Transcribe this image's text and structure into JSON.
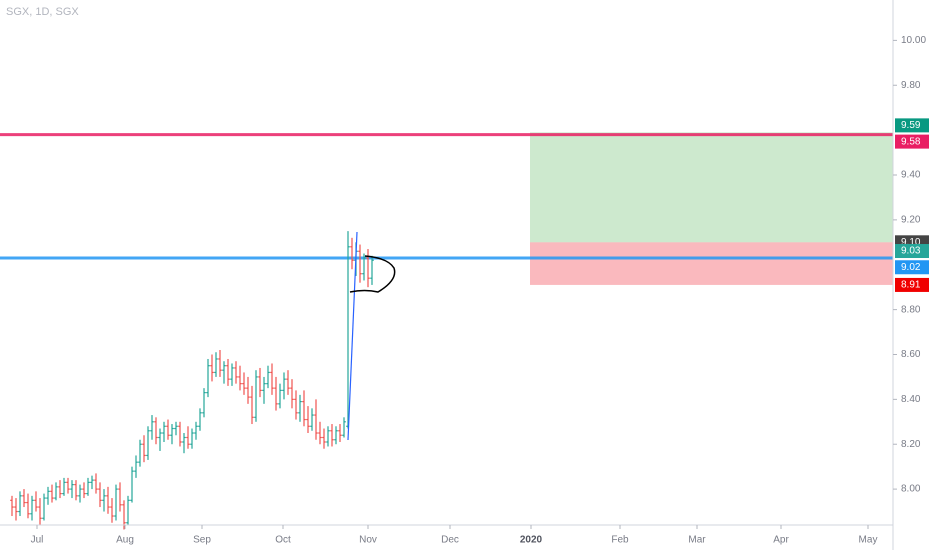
{
  "chart_data": {
    "type": "ohlc",
    "title": "SGX, 1D, SGX",
    "up_color": "#26a69a",
    "down_color": "#ef5350",
    "open": [
      7.95,
      7.92,
      7.9,
      7.97,
      7.94,
      7.89,
      7.95,
      7.92,
      7.87,
      7.96,
      7.99,
      7.96,
      8.01,
      7.98,
      8.03,
      8.0,
      8.02,
      7.97,
      8.0,
      7.98,
      8.03,
      8.04,
      8.0,
      7.95,
      7.97,
      7.92,
      7.88,
      8.0,
      7.93,
      7.85,
      7.95,
      8.08,
      8.12,
      8.2,
      8.15,
      8.26,
      8.3,
      8.23,
      8.25,
      8.28,
      8.24,
      8.27,
      8.28,
      8.21,
      8.23,
      8.2,
      8.25,
      8.28,
      8.34,
      8.43,
      8.55,
      8.52,
      8.58,
      8.53,
      8.55,
      8.49,
      8.54,
      8.5,
      8.47,
      8.45,
      8.41,
      8.32,
      8.5,
      8.44,
      8.47,
      8.52,
      8.45,
      8.38,
      8.44,
      8.49,
      8.45,
      8.4,
      8.34,
      8.39,
      8.31,
      8.28,
      8.33,
      8.25,
      8.23,
      8.21,
      8.26,
      8.22,
      8.26,
      8.24,
      8.28,
      9.08,
      9.02,
      9.06,
      8.96,
      9.03,
      8.94
    ],
    "high": [
      7.97,
      7.96,
      7.99,
      8.0,
      7.98,
      7.97,
      7.99,
      7.96,
      7.98,
      8.01,
      8.02,
      8.03,
      8.04,
      8.05,
      8.05,
      8.04,
      8.04,
      8.02,
      8.03,
      8.05,
      8.06,
      8.07,
      8.03,
      8.0,
      8.01,
      7.96,
      8.02,
      8.03,
      7.95,
      7.97,
      8.1,
      8.15,
      8.22,
      8.24,
      8.28,
      8.33,
      8.32,
      8.27,
      8.3,
      8.31,
      8.29,
      8.3,
      8.3,
      8.25,
      8.28,
      8.27,
      8.3,
      8.36,
      8.45,
      8.58,
      8.6,
      8.61,
      8.62,
      8.57,
      8.58,
      8.56,
      8.57,
      8.55,
      8.52,
      8.5,
      8.46,
      8.53,
      8.54,
      8.5,
      8.55,
      8.56,
      8.5,
      8.47,
      8.52,
      8.53,
      8.49,
      8.44,
      8.42,
      8.44,
      8.37,
      8.36,
      8.4,
      8.3,
      8.27,
      8.28,
      8.29,
      8.28,
      8.29,
      8.32,
      9.15,
      9.12,
      9.1,
      9.09,
      9.05,
      9.07,
      9.04
    ],
    "low": [
      7.88,
      7.86,
      7.88,
      7.92,
      7.87,
      7.86,
      7.9,
      7.84,
      7.86,
      7.93,
      7.94,
      7.95,
      7.96,
      7.97,
      7.98,
      7.96,
      7.95,
      7.94,
      7.96,
      7.97,
      8.0,
      7.98,
      7.92,
      7.9,
      7.89,
      7.85,
      7.86,
      7.9,
      7.82,
      7.84,
      7.94,
      8.05,
      8.1,
      8.12,
      8.13,
      8.22,
      8.2,
      8.17,
      8.21,
      8.22,
      8.2,
      8.24,
      8.19,
      8.16,
      8.18,
      8.18,
      8.22,
      8.26,
      8.32,
      8.41,
      8.48,
      8.5,
      8.5,
      8.47,
      8.46,
      8.46,
      8.47,
      8.44,
      8.42,
      8.38,
      8.29,
      8.3,
      8.41,
      8.38,
      8.45,
      8.42,
      8.35,
      8.36,
      8.4,
      8.42,
      8.36,
      8.31,
      8.3,
      8.28,
      8.25,
      8.26,
      8.22,
      8.2,
      8.18,
      8.19,
      8.19,
      8.2,
      8.21,
      8.23,
      8.27,
      8.98,
      8.95,
      8.92,
      8.93,
      8.9,
      8.91
    ],
    "close": [
      7.92,
      7.9,
      7.97,
      7.94,
      7.89,
      7.95,
      7.92,
      7.87,
      7.96,
      7.99,
      7.96,
      8.01,
      7.98,
      8.03,
      8.0,
      8.02,
      7.97,
      8.0,
      7.98,
      8.03,
      8.04,
      8.0,
      7.95,
      7.97,
      7.92,
      7.88,
      8.0,
      7.93,
      7.85,
      7.95,
      8.08,
      8.12,
      8.2,
      8.15,
      8.26,
      8.3,
      8.23,
      8.25,
      8.28,
      8.24,
      8.27,
      8.28,
      8.21,
      8.23,
      8.2,
      8.25,
      8.28,
      8.34,
      8.43,
      8.55,
      8.52,
      8.58,
      8.53,
      8.55,
      8.49,
      8.54,
      8.5,
      8.47,
      8.45,
      8.41,
      8.32,
      8.5,
      8.44,
      8.47,
      8.52,
      8.45,
      8.38,
      8.44,
      8.49,
      8.45,
      8.4,
      8.34,
      8.39,
      8.31,
      8.28,
      8.33,
      8.25,
      8.23,
      8.21,
      8.26,
      8.22,
      8.26,
      8.24,
      8.3,
      9.08,
      9.02,
      9.06,
      8.96,
      9.03,
      8.94,
      9.02
    ],
    "xlim": [
      -3,
      220.25
    ],
    "xticks": [
      {
        "value": 6.25,
        "label": "Jul"
      },
      {
        "value": 28.25,
        "label": "Aug"
      },
      {
        "value": 47.5,
        "label": "Sep"
      },
      {
        "value": 67.75,
        "label": "Oct"
      },
      {
        "value": 89,
        "label": "Nov"
      },
      {
        "value": 109.5,
        "label": "Dec"
      },
      {
        "value": 129.75,
        "label": "2020"
      },
      {
        "value": 152,
        "label": "Feb"
      },
      {
        "value": 171.25,
        "label": "Mar"
      },
      {
        "value": 192.25,
        "label": "Apr"
      },
      {
        "value": 214,
        "label": "May"
      }
    ],
    "ylim": [
      7.84,
      10.18
    ],
    "yticks": [
      {
        "value": 10,
        "label": "10.00"
      },
      {
        "value": 9.8,
        "label": "9.80"
      },
      {
        "value": 9.4,
        "label": "9.40"
      },
      {
        "value": 9.2,
        "label": "9.20"
      },
      {
        "value": 8.8,
        "label": "8.80"
      },
      {
        "value": 8.6,
        "label": "8.60"
      },
      {
        "value": 8.4,
        "label": "8.40"
      },
      {
        "value": 8.2,
        "label": "8.20"
      },
      {
        "value": 8,
        "label": "8.00"
      }
    ],
    "hlines": [
      {
        "value": 9.58,
        "color": "#e91e63"
      },
      {
        "value": 9.03,
        "color": "#2196f3"
      }
    ],
    "position": {
      "x_start": 129.5,
      "entry": 9.1,
      "target": 9.59,
      "stop": 8.91
    },
    "price_labels": [
      {
        "value": 9.59,
        "label": "9.59",
        "color": "#089981"
      },
      {
        "value": 9.58,
        "label": "9.58",
        "color": "#e91e63"
      },
      {
        "value": 9.1,
        "label": "9.10",
        "color": "#444444"
      },
      {
        "value": 9.03,
        "label": "9.03",
        "color": "#26a69a"
      },
      {
        "value": 9.02,
        "label": "9.02",
        "color": "#2196f3"
      },
      {
        "value": 8.91,
        "label": "8.91",
        "color": "#f00000"
      }
    ]
  }
}
